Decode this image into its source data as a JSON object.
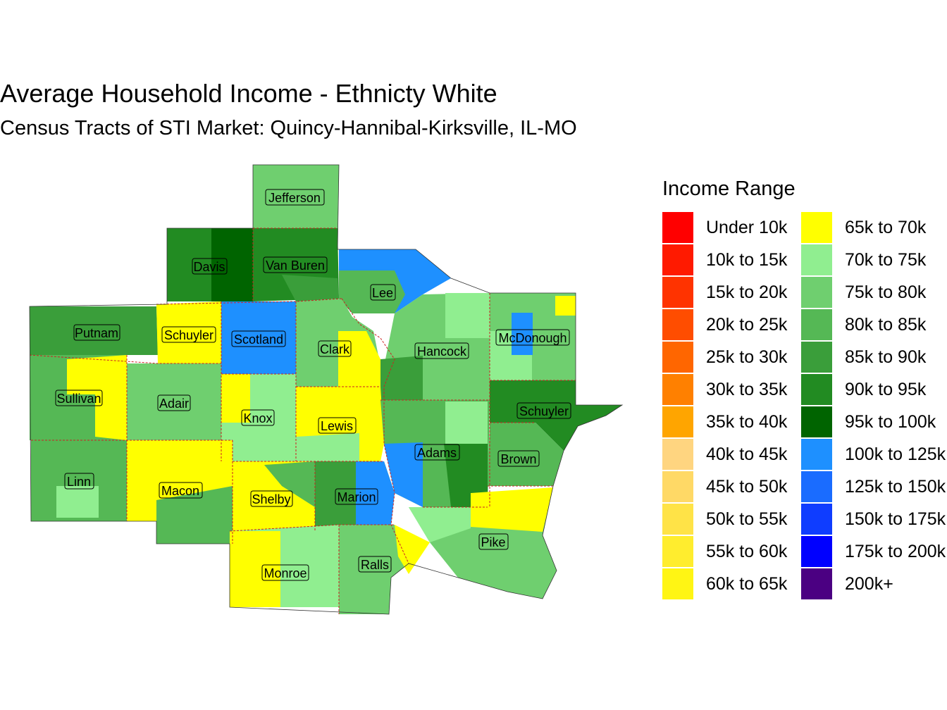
{
  "title": "Average Household Income - Ethnicty White",
  "subtitle": "Census Tracts of STI Market: Quincy-Hannibal-Kirksville, IL-MO",
  "legend": {
    "title": "Income Range",
    "items": [
      {
        "label": "Under 10k",
        "color": "#FF0000"
      },
      {
        "label": "10k to 15k",
        "color": "#FF1A00"
      },
      {
        "label": "15k to 20k",
        "color": "#FF3300"
      },
      {
        "label": "20k to 25k",
        "color": "#FF4D00"
      },
      {
        "label": "25k to 30k",
        "color": "#FF6600"
      },
      {
        "label": "30k to 35k",
        "color": "#FF8000"
      },
      {
        "label": "35k to 40k",
        "color": "#FFA500"
      },
      {
        "label": "40k to 45k",
        "color": "#FFD580"
      },
      {
        "label": "45k to 50k",
        "color": "#FFD966"
      },
      {
        "label": "50k to 55k",
        "color": "#FFE347"
      },
      {
        "label": "55k to 60k",
        "color": "#FFED2E"
      },
      {
        "label": "60k to 65k",
        "color": "#FFF514"
      },
      {
        "label": "65k to 70k",
        "color": "#FFFF00"
      },
      {
        "label": "70k to 75k",
        "color": "#90EE90"
      },
      {
        "label": "75k to 80k",
        "color": "#6FCF6F"
      },
      {
        "label": "80k to 85k",
        "color": "#55B855"
      },
      {
        "label": "85k to 90k",
        "color": "#3A9E3A"
      },
      {
        "label": "90k to 95k",
        "color": "#228B22"
      },
      {
        "label": "95k to 100k",
        "color": "#006400"
      },
      {
        "label": "100k to 125k",
        "color": "#1E90FF"
      },
      {
        "label": "125k to 150k",
        "color": "#1A6CFF"
      },
      {
        "label": "150k to 175k",
        "color": "#0F3DFF"
      },
      {
        "label": "175k to 200k",
        "color": "#0000FF"
      },
      {
        "label": "200k+",
        "color": "#4B0082"
      }
    ]
  },
  "counties": [
    {
      "name": "Jefferson"
    },
    {
      "name": "Davis"
    },
    {
      "name": "Van Buren"
    },
    {
      "name": "Lee"
    },
    {
      "name": "Putnam"
    },
    {
      "name": "Schuyler"
    },
    {
      "name": "Scotland"
    },
    {
      "name": "Clark"
    },
    {
      "name": "Hancock"
    },
    {
      "name": "McDonough"
    },
    {
      "name": "Sullivan"
    },
    {
      "name": "Adair"
    },
    {
      "name": "Knox"
    },
    {
      "name": "Lewis"
    },
    {
      "name": "Schuyler"
    },
    {
      "name": "Adams"
    },
    {
      "name": "Brown"
    },
    {
      "name": "Linn"
    },
    {
      "name": "Macon"
    },
    {
      "name": "Shelby"
    },
    {
      "name": "Marion"
    },
    {
      "name": "Pike"
    },
    {
      "name": "Ralls"
    },
    {
      "name": "Monroe"
    }
  ]
}
